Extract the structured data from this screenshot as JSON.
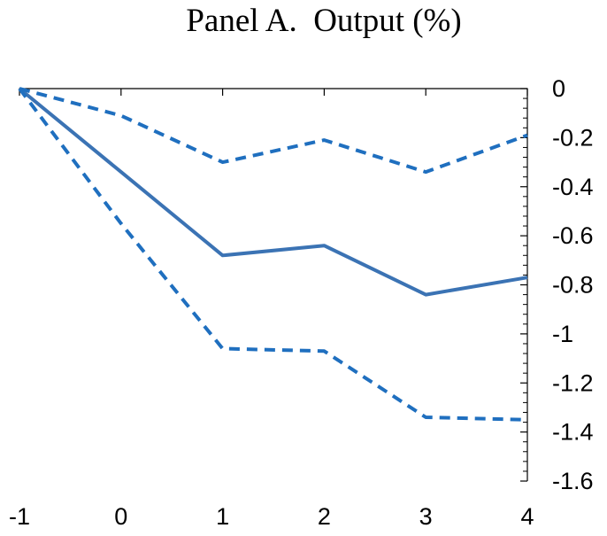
{
  "chart_data": {
    "type": "line",
    "title": "Panel A.  Output (%)",
    "xlabel": "",
    "ylabel": "",
    "x": [
      -1,
      0,
      1,
      2,
      3,
      4
    ],
    "x_tick_labels": [
      "-1",
      "0",
      "1",
      "2",
      "3",
      "4"
    ],
    "y_tick_values": [
      0,
      -0.2,
      -0.4,
      -0.6,
      -0.8,
      -1,
      -1.2,
      -1.4,
      -1.6
    ],
    "y_tick_labels": [
      "0",
      "-0.2",
      "-0.4",
      "-0.6",
      "-0.8",
      "-1",
      "-1.2",
      "-1.4",
      "-1.6"
    ],
    "xlim": [
      -1,
      4
    ],
    "ylim": [
      -1.6,
      0
    ],
    "x_axis_position": "top",
    "y_axis_position": "right",
    "grid": false,
    "legend": "none",
    "series": [
      {
        "style": "solid",
        "color": "#3b73b4",
        "values": [
          0,
          -0.34,
          -0.68,
          -0.64,
          -0.84,
          -0.77
        ]
      },
      {
        "style": "dashed",
        "color": "#1f6fbf",
        "values": [
          0,
          -0.11,
          -0.3,
          -0.21,
          -0.34,
          -0.19
        ]
      },
      {
        "style": "dashed",
        "color": "#1f6fbf",
        "values": [
          0,
          -0.55,
          -1.06,
          -1.07,
          -1.34,
          -1.35
        ]
      }
    ]
  }
}
